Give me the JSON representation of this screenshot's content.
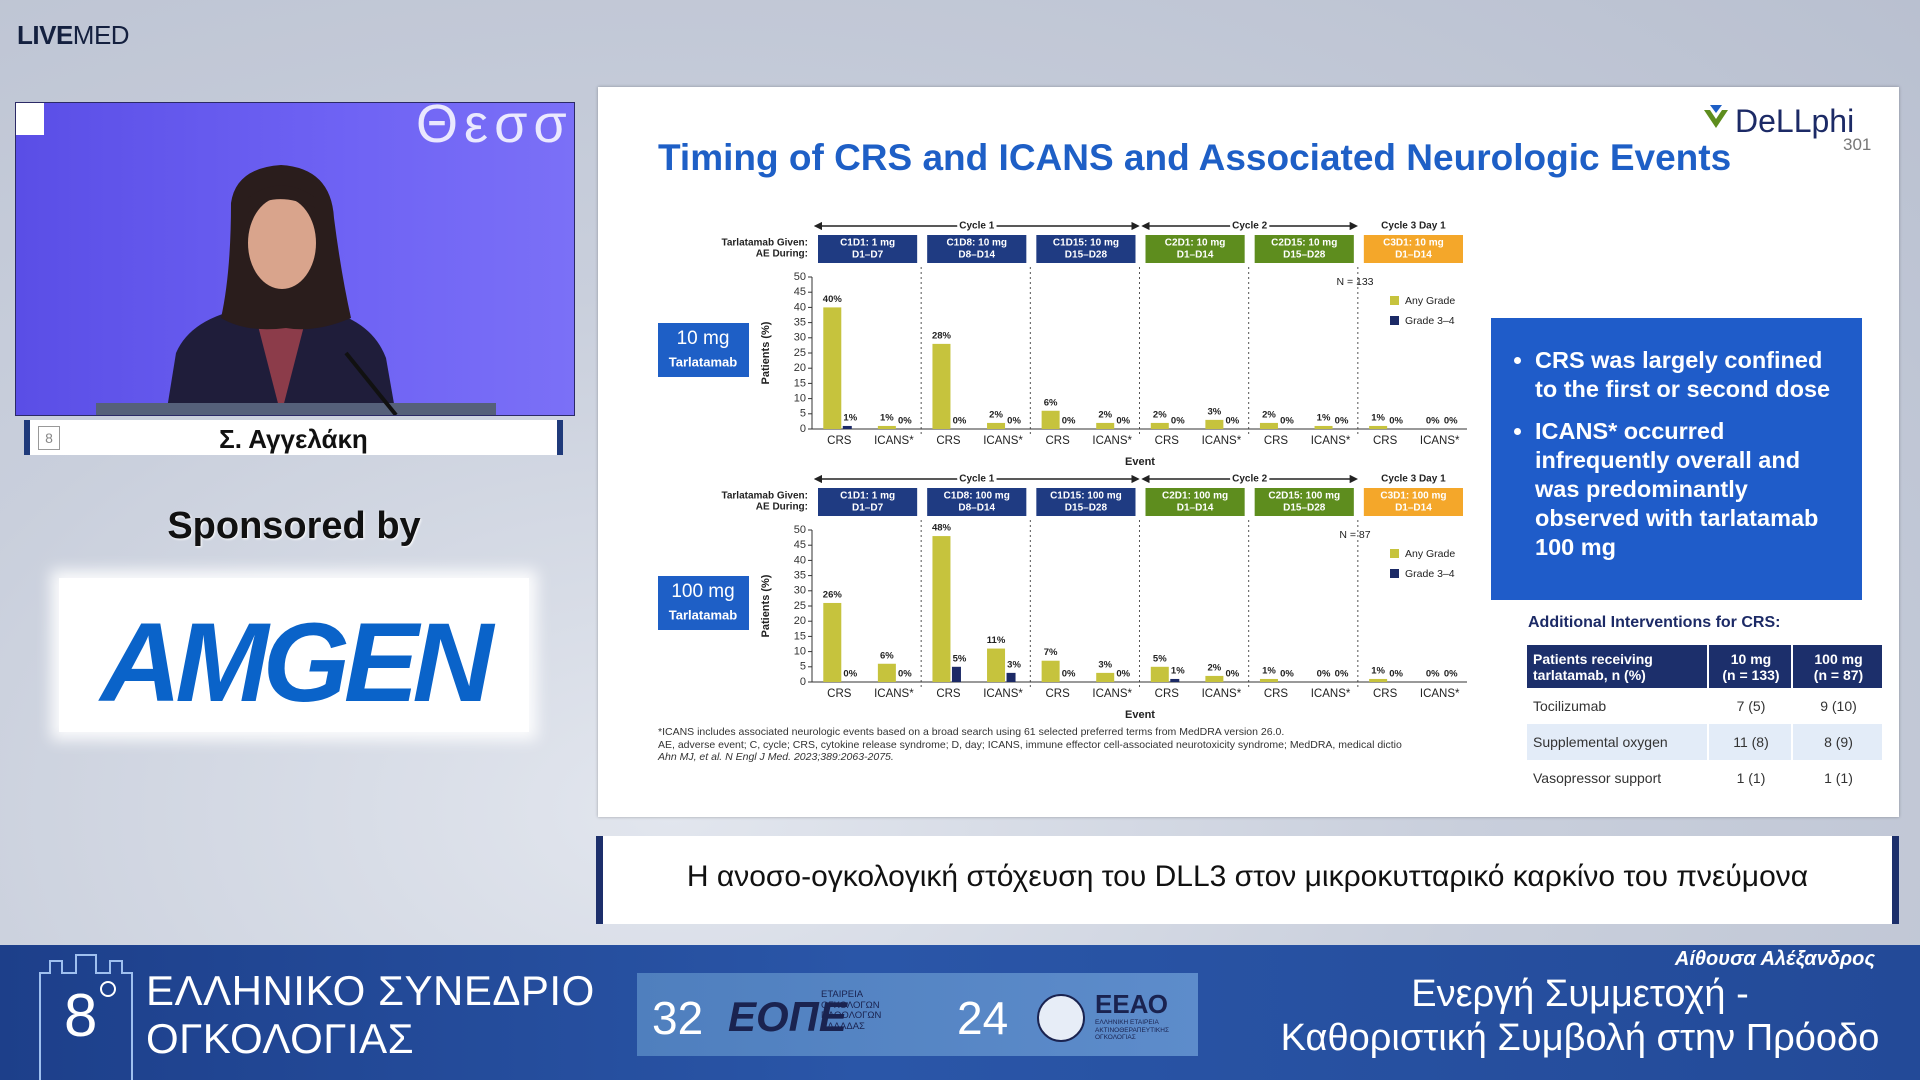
{
  "brand": {
    "strong": "LIVE",
    "light": "MED"
  },
  "video": {
    "backdrop_text": "Θεσσ",
    "speaker": "Σ. Αγγελάκη",
    "badge": "8"
  },
  "sponsor": {
    "label": "Sponsored by",
    "logo": "AMGEN"
  },
  "slide": {
    "title": "Timing of CRS and ICANS and Associated Neurologic Events",
    "logo": "DeLLphi",
    "logo_number": "301",
    "bullets": [
      "CRS was largely confined to the first or second dose",
      "ICANS* occurred infrequently overall and was predominantly observed with tarlatamab 100 mg"
    ],
    "table": {
      "title": "Additional Interventions for CRS:",
      "header": [
        [
          "Patients receiving",
          "tarlatamab, n (%)"
        ],
        [
          "10 mg",
          "(n = 133)"
        ],
        [
          "100 mg",
          "(n = 87)"
        ]
      ],
      "rows": [
        [
          "Tocilizumab",
          "7 (5)",
          "9 (10)"
        ],
        [
          "Supplemental oxygen",
          "11 (8)",
          "8 (9)"
        ],
        [
          "Vasopressor support",
          "1 (1)",
          "1 (1)"
        ]
      ]
    },
    "footnotes": [
      "*ICANS includes associated neurologic events based on a broad search using 61 selected preferred terms from MedDRA version 26.0.",
      "AE, adverse event; C, cycle; CRS, cytokine release syndrome; D, day; ICANS, immune effector cell-associated neurotoxicity syndrome; MedDRA, medical dictio",
      "Ahn MJ, et al. N Engl J Med. 2023;389:2063-2075."
    ]
  },
  "chart_data": [
    {
      "type": "bar",
      "dose_label": "10 mg",
      "drug_label": "Tarlatamab",
      "given_label": "Tarlatamab Given:",
      "during_label": "AE During:",
      "cycles": [
        "Cycle 1",
        "Cycle 2",
        "Cycle 3 Day 1"
      ],
      "periods": [
        {
          "dose": "C1D1: 1 mg",
          "window": "D1–D7",
          "color": "#1f3b82"
        },
        {
          "dose": "C1D8: 10 mg",
          "window": "D8–D14",
          "color": "#1f3b82"
        },
        {
          "dose": "C1D15: 10 mg",
          "window": "D15–D28",
          "color": "#1f3b82"
        },
        {
          "dose": "C2D1: 10 mg",
          "window": "D1–D14",
          "color": "#5e8d1e"
        },
        {
          "dose": "C2D15: 10 mg",
          "window": "D15–D28",
          "color": "#5e8d1e"
        },
        {
          "dose": "C3D1: 10 mg",
          "window": "D1–D14",
          "color": "#f4a72a"
        }
      ],
      "categories": [
        "CRS",
        "ICANS*",
        "CRS",
        "ICANS*",
        "CRS",
        "ICANS*",
        "CRS",
        "ICANS*",
        "CRS",
        "ICANS*",
        "CRS",
        "ICANS*"
      ],
      "series": [
        {
          "name": "Any Grade",
          "color": "#c6c33d",
          "values": [
            40,
            1,
            28,
            2,
            6,
            2,
            2,
            3,
            2,
            1,
            1,
            0
          ],
          "value_labels": [
            "40%",
            "1%",
            "28%",
            "2%",
            "6%",
            "2%",
            "2%",
            "3%",
            "2%",
            "1%",
            "1%",
            "0%"
          ]
        },
        {
          "name": "Grade 3–4",
          "color": "#1c2a66",
          "values": [
            1,
            0,
            0,
            0,
            0,
            0,
            0,
            0,
            0,
            0,
            0,
            0
          ],
          "value_labels": [
            "1%",
            "0%",
            "0%",
            "0%",
            "0%",
            "0%",
            "0%",
            "0%",
            "0%",
            "0%",
            "0%",
            "0%"
          ]
        }
      ],
      "ylabel": "Patients (%)",
      "xlabel": "Event",
      "annotation": "N = 133",
      "ylim": [
        0,
        50
      ],
      "yticks": [
        0,
        5,
        10,
        15,
        20,
        25,
        30,
        35,
        40,
        45,
        50
      ]
    },
    {
      "type": "bar",
      "dose_label": "100 mg",
      "drug_label": "Tarlatamab",
      "given_label": "Tarlatamab Given:",
      "during_label": "AE During:",
      "cycles": [
        "Cycle 1",
        "Cycle 2",
        "Cycle 3 Day 1"
      ],
      "periods": [
        {
          "dose": "C1D1: 1 mg",
          "window": "D1–D7",
          "color": "#1f3b82"
        },
        {
          "dose": "C1D8: 100 mg",
          "window": "D8–D14",
          "color": "#1f3b82"
        },
        {
          "dose": "C1D15: 100 mg",
          "window": "D15–D28",
          "color": "#1f3b82"
        },
        {
          "dose": "C2D1: 100 mg",
          "window": "D1–D14",
          "color": "#5e8d1e"
        },
        {
          "dose": "C2D15: 100 mg",
          "window": "D15–D28",
          "color": "#5e8d1e"
        },
        {
          "dose": "C3D1: 100 mg",
          "window": "D1–D14",
          "color": "#f4a72a"
        }
      ],
      "categories": [
        "CRS",
        "ICANS*",
        "CRS",
        "ICANS*",
        "CRS",
        "ICANS*",
        "CRS",
        "ICANS*",
        "CRS",
        "ICANS*",
        "CRS",
        "ICANS*"
      ],
      "series": [
        {
          "name": "Any Grade",
          "color": "#c6c33d",
          "values": [
            26,
            6,
            48,
            11,
            7,
            3,
            5,
            2,
            1,
            0,
            1,
            0
          ],
          "value_labels": [
            "26%",
            "6%",
            "48%",
            "11%",
            "7%",
            "3%",
            "5%",
            "2%",
            "1%",
            "0%",
            "1%",
            "0%"
          ]
        },
        {
          "name": "Grade 3–4",
          "color": "#1c2a66",
          "values": [
            0,
            0,
            5,
            3,
            0,
            0,
            1,
            0,
            0,
            0,
            0,
            0
          ],
          "value_labels": [
            "0%",
            "0%",
            "5%",
            "3%",
            "0%",
            "0%",
            "1%",
            "0%",
            "0%",
            "0%",
            "0%",
            "0%"
          ]
        }
      ],
      "ylabel": "Patients (%)",
      "xlabel": "Event",
      "annotation": "N = 87",
      "ylim": [
        0,
        50
      ],
      "yticks": [
        0,
        5,
        10,
        15,
        20,
        25,
        30,
        35,
        40,
        45,
        50
      ]
    }
  ],
  "caption": "Η ανοσο-ογκολογική στόχευση του DLL3 στον μικροκυτταρικό καρκίνο του πνεύμονα",
  "footer": {
    "edition": "8",
    "congress_line1": "ΕΛΛΗΝΙΚΟ ΣΥΝΕΔΡΙΟ",
    "congress_line2": "ΟΓΚΟΛΟΓΙΑΣ",
    "eope_number": "32",
    "eope": "ΕΟΠΕ",
    "eope_text": [
      "ΕΤΑΙΡΕΙΑ",
      "ΟΓΚΟΛΟΓΩΝ",
      "ΠΑΘΟΛΟΓΩΝ",
      "ΕΛΛΑΔΑΣ"
    ],
    "eeao_number": "24",
    "eeao": "ΕΕΑΟ",
    "eeao_text": [
      "ΕΛΛΗΝΙΚΗ ΕΤΑΙΡΕΙΑ",
      "ΑΚΤΙΝΟΘΕΡΑΠΕΥΤΙΚΗΣ",
      "ΟΓΚΟΛΟΓΙΑΣ"
    ],
    "room": "Αίθουσα Αλέξανδρος",
    "motto_line1": "Ενεργή Συμμετοχή -",
    "motto_line2": "Καθοριστική Συμβολή στην Πρόοδο"
  }
}
